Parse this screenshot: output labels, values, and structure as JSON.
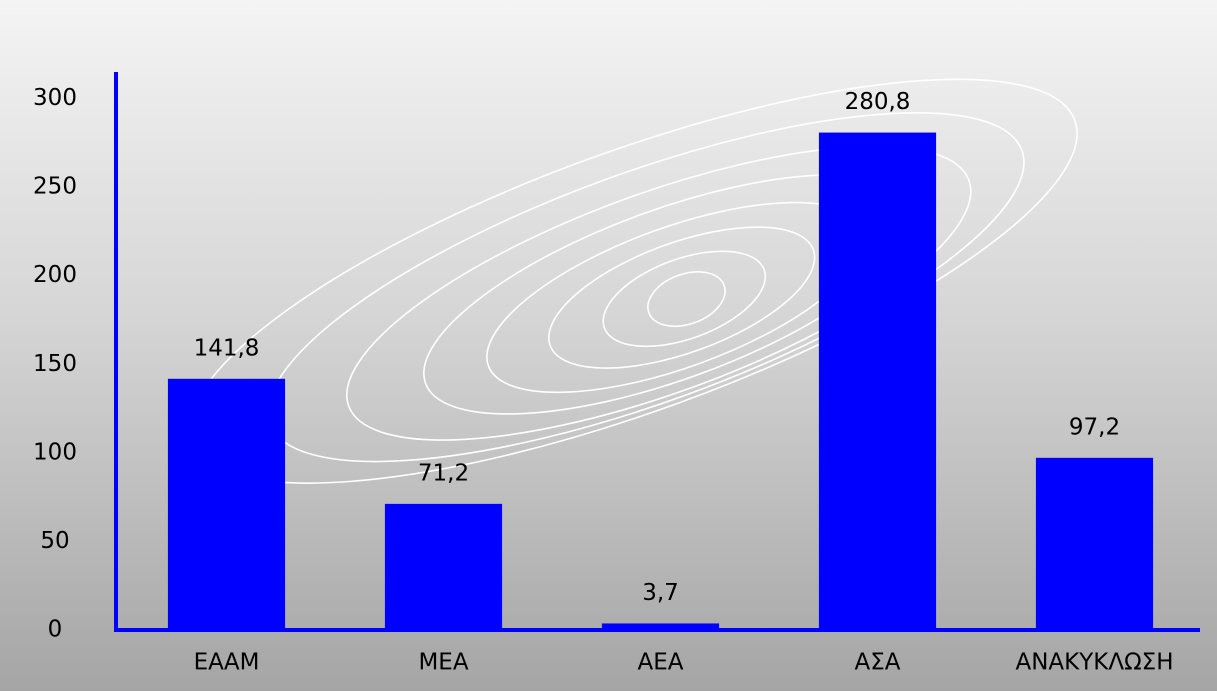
{
  "chart_data": {
    "type": "bar",
    "categories": [
      "ΕΑΑΜ",
      "ΜΕΑ",
      "ΑΕΑ",
      "ΑΣΑ",
      "ΑΝΑΚΥΚΛΩΣΗ"
    ],
    "values": [
      141.8,
      71.2,
      3.7,
      280.8,
      97.2
    ],
    "value_labels": [
      "141,8",
      "71,2",
      "3,7",
      "280,8",
      "97,2"
    ],
    "color": "#0000ff",
    "ylim": [
      0,
      315
    ],
    "yticks": [
      0,
      50,
      100,
      150,
      200,
      250,
      300
    ],
    "grid": false
  }
}
